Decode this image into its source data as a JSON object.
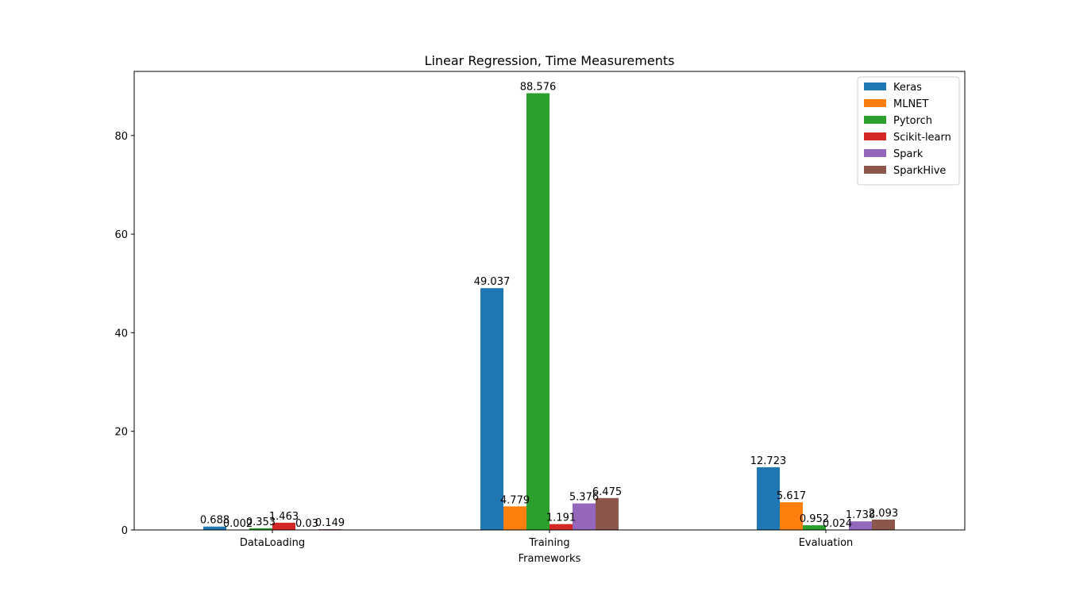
{
  "chart_data": {
    "type": "bar",
    "title": "Linear Regression, Time Measurements",
    "xlabel": "Frameworks",
    "ylabel": "",
    "categories": [
      "DataLoading",
      "Training",
      "Evaluation"
    ],
    "ylim": [
      0,
      93
    ],
    "yticks": [
      0,
      20,
      40,
      60,
      80
    ],
    "grid": false,
    "legend_position": "top-right",
    "series": [
      {
        "name": "Keras",
        "color": "#1f77b4",
        "values": [
          0.688,
          49.037,
          12.723
        ],
        "labels": [
          "0.688",
          "49.037",
          "12.723"
        ]
      },
      {
        "name": "MLNET",
        "color": "#ff7f0e",
        "values": [
          0.002,
          4.779,
          5.617
        ],
        "labels": [
          "0.002",
          "4.779",
          "5.617"
        ]
      },
      {
        "name": "Pytorch",
        "color": "#2ca02c",
        "values": [
          0.353,
          88.576,
          0.952
        ],
        "labels": [
          "0.353",
          "88.576",
          "0.952"
        ]
      },
      {
        "name": "Scikit-learn",
        "color": "#d62728",
        "values": [
          1.463,
          1.191,
          0.024
        ],
        "labels": [
          "1.463",
          "1.191",
          "0.024"
        ]
      },
      {
        "name": "Spark",
        "color": "#9467bd",
        "values": [
          0.03,
          5.376,
          1.738
        ],
        "labels": [
          "0.03",
          "5.376",
          "1.738"
        ]
      },
      {
        "name": "SparkHive",
        "color": "#8c564b",
        "values": [
          0.149,
          6.475,
          2.093
        ],
        "labels": [
          "0.149",
          "6.475",
          "2.093"
        ]
      }
    ]
  }
}
